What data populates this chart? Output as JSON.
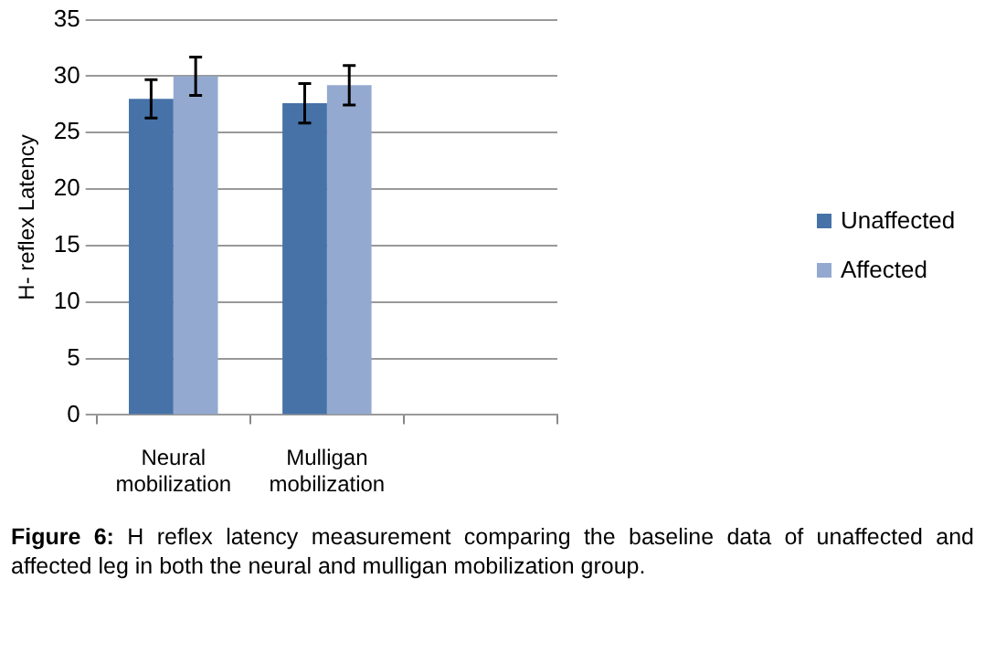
{
  "chart_data": {
    "type": "bar",
    "ylabel": "H- reflex Latency",
    "categories": [
      "Neural mobilization",
      "Mulligan mobilization",
      null
    ],
    "series": [
      {
        "name": "Unaffected",
        "color": "#4672a8",
        "values": [
          28.0,
          27.6,
          null
        ],
        "errors": [
          1.7,
          1.75,
          null
        ]
      },
      {
        "name": "Affected",
        "color": "#94a9d0",
        "values": [
          30.0,
          29.2,
          null
        ],
        "errors": [
          1.7,
          1.75,
          null
        ]
      }
    ],
    "ylim": [
      0,
      35
    ],
    "yticks": [
      0,
      5,
      10,
      15,
      20,
      25,
      30,
      35
    ],
    "grid": "y",
    "legend": "right",
    "annotations": [
      "Figure 6:",
      "H reflex latency measurement comparing the baseline data of unaffected and affected leg in both the neural and mulligan mobilization group."
    ]
  }
}
